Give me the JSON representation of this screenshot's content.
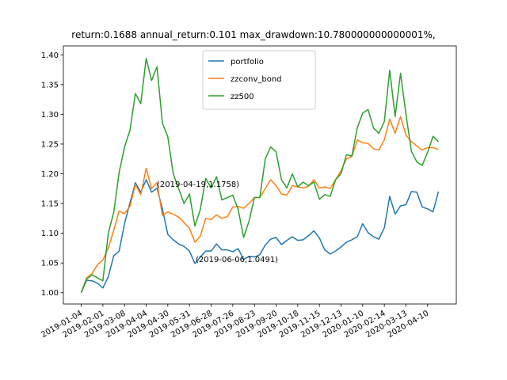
{
  "chart_data": {
    "type": "line",
    "title": "return:0.1688  annual_return:0.101  max_drawdown:10.780000000000001%,",
    "categories": [
      "2019-01-04",
      null,
      null,
      null,
      "2019-02-01",
      null,
      null,
      null,
      "2019-03-08",
      null,
      null,
      null,
      "2019-04-04",
      null,
      null,
      null,
      "2019-04-30",
      null,
      null,
      null,
      "2019-05-31",
      null,
      null,
      null,
      "2019-06-28",
      null,
      null,
      null,
      "2019-07-26",
      null,
      null,
      null,
      "2019-08-23",
      null,
      null,
      null,
      "2019-09-20",
      null,
      null,
      null,
      "2019-10-18",
      null,
      null,
      null,
      "2019-11-15",
      null,
      null,
      null,
      "2019-12-13",
      null,
      null,
      null,
      "2020-01-10",
      null,
      null,
      null,
      "2020-02-14",
      null,
      null,
      null,
      "2020-03-13",
      null,
      null,
      null,
      "2020-04-10",
      null,
      null
    ],
    "series": [
      {
        "name": "portfolio",
        "color": "#1f77b4",
        "values": [
          1.0,
          1.021,
          1.02,
          1.016,
          1.008,
          1.027,
          1.062,
          1.07,
          1.116,
          1.151,
          1.185,
          1.169,
          1.19,
          1.169,
          1.1758,
          1.141,
          1.098,
          1.089,
          1.082,
          1.078,
          1.07,
          1.0491,
          1.06,
          1.07,
          1.07,
          1.082,
          1.072,
          1.072,
          1.069,
          1.074,
          1.056,
          1.061,
          1.06,
          1.064,
          1.08,
          1.09,
          1.093,
          1.081,
          1.088,
          1.094,
          1.088,
          1.089,
          1.096,
          1.104,
          1.092,
          1.072,
          1.065,
          1.07,
          1.077,
          1.085,
          1.089,
          1.094,
          1.116,
          1.101,
          1.094,
          1.09,
          1.109,
          1.162,
          1.132,
          1.146,
          1.148,
          1.17,
          1.169,
          1.144,
          1.141,
          1.136,
          1.17
        ]
      },
      {
        "name": "zzconv_bond",
        "color": "#ff7f0e",
        "values": [
          1.0,
          1.025,
          1.032,
          1.047,
          1.055,
          1.075,
          1.105,
          1.137,
          1.133,
          1.145,
          1.182,
          1.165,
          1.209,
          1.175,
          1.185,
          1.13,
          1.136,
          1.132,
          1.127,
          1.118,
          1.108,
          1.085,
          1.095,
          1.125,
          1.123,
          1.131,
          1.125,
          1.128,
          1.144,
          1.145,
          1.142,
          1.15,
          1.16,
          1.16,
          1.175,
          1.19,
          1.18,
          1.166,
          1.164,
          1.18,
          1.178,
          1.176,
          1.179,
          1.19,
          1.176,
          1.178,
          1.175,
          1.19,
          1.205,
          1.225,
          1.229,
          1.257,
          1.252,
          1.251,
          1.242,
          1.24,
          1.257,
          1.292,
          1.268,
          1.296,
          1.265,
          1.254,
          1.247,
          1.24,
          1.244,
          1.244,
          1.241
        ]
      },
      {
        "name": "zz500",
        "color": "#2ca02c",
        "values": [
          1.0,
          1.023,
          1.03,
          1.025,
          1.02,
          1.1,
          1.135,
          1.202,
          1.245,
          1.273,
          1.335,
          1.318,
          1.394,
          1.357,
          1.38,
          1.285,
          1.262,
          1.2,
          1.175,
          1.15,
          1.166,
          1.112,
          1.14,
          1.192,
          1.176,
          1.195,
          1.156,
          1.16,
          1.164,
          1.14,
          1.093,
          1.12,
          1.16,
          1.16,
          1.225,
          1.245,
          1.237,
          1.19,
          1.176,
          1.2,
          1.178,
          1.186,
          1.18,
          1.186,
          1.157,
          1.165,
          1.162,
          1.19,
          1.2,
          1.232,
          1.23,
          1.277,
          1.302,
          1.308,
          1.277,
          1.268,
          1.288,
          1.374,
          1.296,
          1.369,
          1.3,
          1.238,
          1.22,
          1.214,
          1.236,
          1.263,
          1.254
        ]
      }
    ],
    "ylim": [
      0.981,
      1.415
    ],
    "yticks": [
      {
        "value": 1.0,
        "label": "1.00"
      },
      {
        "value": 1.05,
        "label": "1.05"
      },
      {
        "value": 1.1,
        "label": "1.10"
      },
      {
        "value": 1.15,
        "label": "1.15"
      },
      {
        "value": 1.2,
        "label": "1.20"
      },
      {
        "value": 1.25,
        "label": "1.25"
      },
      {
        "value": 1.3,
        "label": "1.30"
      },
      {
        "value": 1.35,
        "label": "1.35"
      },
      {
        "value": 1.4,
        "label": "1.40"
      }
    ],
    "annotations": [
      "(2019-04-19,1.1758)",
      "(2019-06-06,1.0491)"
    ],
    "legend": "upper center",
    "grid": false
  }
}
